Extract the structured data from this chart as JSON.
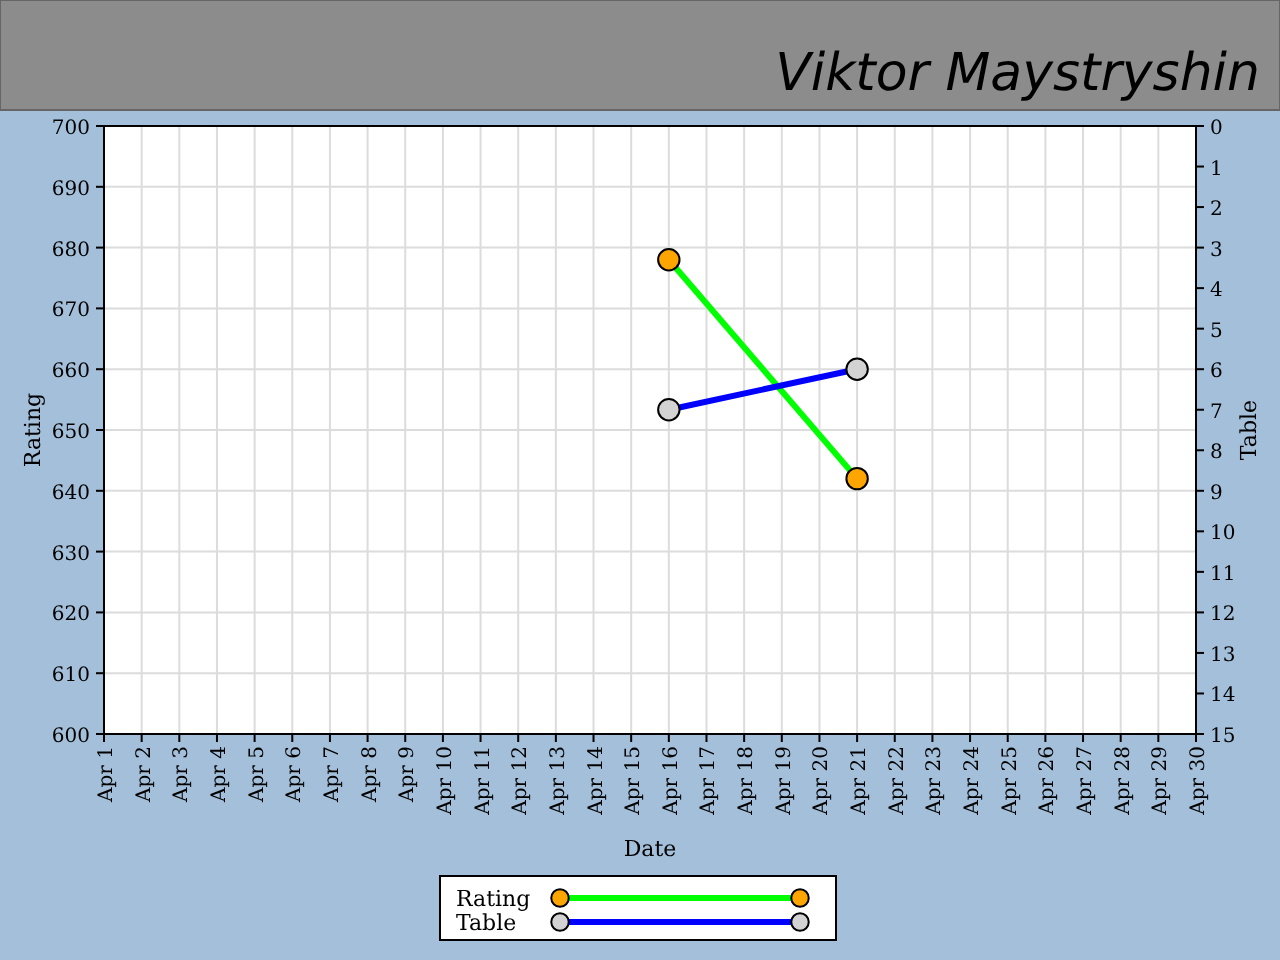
{
  "chart_data": {
    "type": "line",
    "title": "Viktor Maystryshin",
    "xlabel": "Date",
    "ylabel": "Rating",
    "y2label": "Table",
    "categories": [
      "Apr 1",
      "Apr 2",
      "Apr 3",
      "Apr 4",
      "Apr 5",
      "Apr 6",
      "Apr 7",
      "Apr 8",
      "Apr 9",
      "Apr 10",
      "Apr 11",
      "Apr 12",
      "Apr 13",
      "Apr 14",
      "Apr 15",
      "Apr 16",
      "Apr 17",
      "Apr 18",
      "Apr 19",
      "Apr 20",
      "Apr 21",
      "Apr 22",
      "Apr 23",
      "Apr 24",
      "Apr 25",
      "Apr 26",
      "Apr 27",
      "Apr 28",
      "Apr 29",
      "Apr 30"
    ],
    "series": [
      {
        "name": "Rating",
        "color": "#00ff00",
        "values": [
          null,
          null,
          null,
          null,
          null,
          null,
          null,
          null,
          null,
          null,
          null,
          null,
          null,
          null,
          null,
          678,
          null,
          null,
          null,
          null,
          642,
          null,
          null,
          null,
          null,
          null,
          null,
          null,
          null,
          null
        ]
      },
      {
        "name": "Table",
        "color": "#0000ff",
        "axis": "y2",
        "values": [
          null,
          null,
          null,
          null,
          null,
          null,
          null,
          null,
          null,
          null,
          null,
          null,
          null,
          null,
          null,
          7,
          null,
          null,
          null,
          null,
          6,
          null,
          null,
          null,
          null,
          null,
          null,
          null,
          null,
          null
        ]
      }
    ],
    "ylim": [
      600,
      700
    ],
    "yticks": [
      600,
      610,
      620,
      630,
      640,
      650,
      660,
      670,
      680,
      690,
      700
    ],
    "y2lim": [
      15,
      0
    ],
    "y2ticks": [
      0,
      1,
      2,
      3,
      4,
      5,
      6,
      7,
      8,
      9,
      10,
      11,
      12,
      13,
      14,
      15
    ],
    "grid": true,
    "legend": "bottom",
    "marker": "circle"
  }
}
